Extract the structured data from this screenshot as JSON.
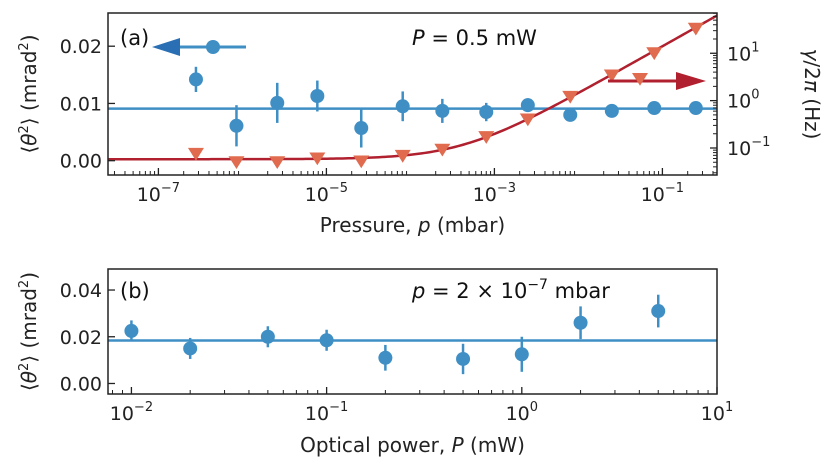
{
  "colors": {
    "blue": "#3f8fc5",
    "red_marker": "#e06b4e",
    "red_curve": "#b0202e",
    "axis": "#222222"
  },
  "chart_data": [
    {
      "id": "a",
      "panel_label": "(a)",
      "type": "scatter",
      "annotation": "P = 0.5 mW",
      "annotation_parts": {
        "var": "P",
        "rest": " = 0.5 mW"
      },
      "xlabel": "Pressure, p (mbar)",
      "xlabel_parts": {
        "pre": "Pressure, ",
        "var": "p",
        "post": " (mbar)"
      },
      "xscale": "log",
      "xlim_log10": [
        -7.6,
        -0.35
      ],
      "xticks": [
        {
          "exp": -7,
          "base": "10",
          "power": "−7"
        },
        {
          "exp": -5,
          "base": "10",
          "power": "−5"
        },
        {
          "exp": -3,
          "base": "10",
          "power": "−3"
        },
        {
          "exp": -1,
          "base": "10",
          "power": "−1"
        }
      ],
      "left_axis": {
        "label": "⟨θ²⟩ (mrad²)",
        "label_parts": {
          "open": "⟨",
          "var": "θ",
          "sup": "2",
          "close": "⟩",
          "unit": "(mrad",
          "unit_sup": "2",
          "unit_close": ")"
        },
        "ylim": [
          -0.0025,
          0.0258
        ],
        "ticks": [
          {
            "v": 0.0,
            "t": "0.00"
          },
          {
            "v": 0.01,
            "t": "0.01"
          },
          {
            "v": 0.02,
            "t": "0.02"
          }
        ]
      },
      "right_axis": {
        "label": "γ/2π (Hz)",
        "label_parts": {
          "var": "γ",
          "rest": "/2",
          "pi": "π",
          "unit": " (Hz)"
        },
        "scale": "log",
        "ylim_log10": [
          -1.57,
          1.85
        ],
        "ticks": [
          {
            "exp": -1,
            "base": "10",
            "power": "−1"
          },
          {
            "exp": 0,
            "base": "10",
            "power": "0"
          },
          {
            "exp": 1,
            "base": "10",
            "power": "1"
          }
        ]
      },
      "series": [
        {
          "name": "⟨θ²⟩ (left axis)",
          "axis": "left",
          "marker": "circle",
          "color": "#3f8fc5",
          "points": [
            {
              "x": 2.8e-07,
              "y": 0.0142,
              "err": 0.0022
            },
            {
              "x": 8.5e-07,
              "y": 0.0061,
              "err": 0.0036
            },
            {
              "x": 2.6e-06,
              "y": 0.0101,
              "err": 0.0035
            },
            {
              "x": 7.8e-06,
              "y": 0.0113,
              "err": 0.0027
            },
            {
              "x": 2.6e-05,
              "y": 0.0057,
              "err": 0.0034
            },
            {
              "x": 8.1e-05,
              "y": 0.0095,
              "err": 0.0026
            },
            {
              "x": 0.00024,
              "y": 0.0087,
              "err": 0.0021
            },
            {
              "x": 0.0008,
              "y": 0.0085,
              "err": 0.0016
            },
            {
              "x": 0.0025,
              "y": 0.0097,
              "err": 0.0012
            },
            {
              "x": 0.008,
              "y": 0.008,
              "err": 0.0
            },
            {
              "x": 0.025,
              "y": 0.0087,
              "err": 0.0
            },
            {
              "x": 0.08,
              "y": 0.0092,
              "err": 0.0
            },
            {
              "x": 0.25,
              "y": 0.0092,
              "err": 0.0
            }
          ],
          "fit_line": 0.0091
        },
        {
          "name": "γ/2π (right axis)",
          "axis": "right",
          "marker": "triangle-down",
          "color": "#e06b4e",
          "points": [
            {
              "x": 2.8e-07,
              "y": 0.075
            },
            {
              "x": 8.5e-07,
              "y": 0.05
            },
            {
              "x": 2.6e-06,
              "y": 0.05
            },
            {
              "x": 7.8e-06,
              "y": 0.06
            },
            {
              "x": 2.6e-05,
              "y": 0.052
            },
            {
              "x": 8.1e-05,
              "y": 0.068
            },
            {
              "x": 0.00024,
              "y": 0.092
            },
            {
              "x": 0.0008,
              "y": 0.17
            },
            {
              "x": 0.0025,
              "y": 0.4
            },
            {
              "x": 0.008,
              "y": 1.2
            },
            {
              "x": 0.025,
              "y": 3.4
            },
            {
              "x": 0.08,
              "y": 10.0
            },
            {
              "x": 0.25,
              "y": 33.0
            }
          ],
          "fit_curve": {
            "model": "a + b*p",
            "a": 0.058,
            "b": 140,
            "color": "#b0202e"
          }
        }
      ]
    },
    {
      "id": "b",
      "panel_label": "(b)",
      "type": "scatter",
      "annotation": "p = 2 × 10⁻⁷ mbar",
      "annotation_parts": {
        "var": "p",
        "mid": " = 2 × 10",
        "sup": "−7",
        "unit": " mbar"
      },
      "xlabel": "Optical power, P (mW)",
      "xlabel_parts": {
        "pre": "Optical power, ",
        "var": "P",
        "post": " (mW)"
      },
      "xscale": "log",
      "xlim_log10": [
        -2.12,
        1.0
      ],
      "xticks": [
        {
          "exp": -2,
          "base": "10",
          "power": "−2"
        },
        {
          "exp": -1,
          "base": "10",
          "power": "−1"
        },
        {
          "exp": 0,
          "base": "10",
          "power": "0"
        },
        {
          "exp": 1,
          "base": "10",
          "power": "1"
        }
      ],
      "left_axis": {
        "label": "⟨θ²⟩ (mrad²)",
        "label_parts": {
          "open": "⟨",
          "var": "θ",
          "sup": "2",
          "close": "⟩",
          "unit": "(mrad",
          "unit_sup": "2",
          "unit_close": ")"
        },
        "ylim": [
          -0.0045,
          0.049
        ],
        "ticks": [
          {
            "v": 0.0,
            "t": "0.00"
          },
          {
            "v": 0.02,
            "t": "0.02"
          },
          {
            "v": 0.04,
            "t": "0.04"
          }
        ]
      },
      "series": [
        {
          "name": "⟨θ²⟩",
          "axis": "left",
          "marker": "circle",
          "color": "#3f8fc5",
          "points": [
            {
              "x": 0.01,
              "y": 0.0225,
              "err": 0.0045
            },
            {
              "x": 0.02,
              "y": 0.015,
              "err": 0.0045
            },
            {
              "x": 0.05,
              "y": 0.02,
              "err": 0.0045
            },
            {
              "x": 0.1,
              "y": 0.0185,
              "err": 0.0045
            },
            {
              "x": 0.2,
              "y": 0.011,
              "err": 0.0055
            },
            {
              "x": 0.5,
              "y": 0.0105,
              "err": 0.0065
            },
            {
              "x": 1.0,
              "y": 0.0125,
              "err": 0.0075
            },
            {
              "x": 2.0,
              "y": 0.026,
              "err": 0.007
            },
            {
              "x": 5.0,
              "y": 0.031,
              "err": 0.007
            }
          ],
          "fit_line": 0.0184
        }
      ]
    }
  ]
}
